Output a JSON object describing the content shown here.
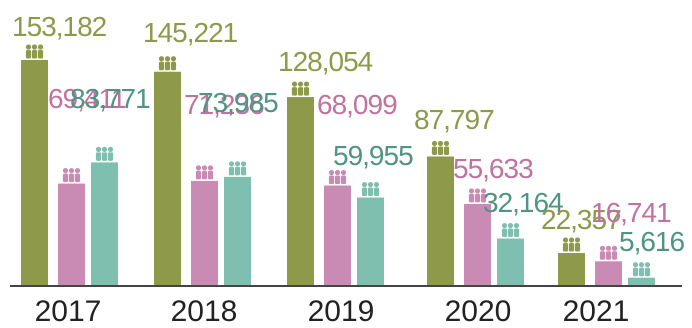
{
  "chart_data": {
    "type": "bar",
    "categories": [
      "2017",
      "2018",
      "2019",
      "2020",
      "2021"
    ],
    "series": [
      {
        "color": "#8e9a4a",
        "values": [
          153182,
          145221,
          128054,
          87797,
          22357
        ],
        "labels": [
          "153,182",
          "145,221",
          "128,054",
          "87,797",
          "22,357"
        ]
      },
      {
        "color": "#c98bb4",
        "values": [
          69411,
          71236,
          68099,
          55633,
          16741
        ],
        "labels": [
          "69,411",
          "71,236",
          "68,099",
          "55,633",
          "16,741"
        ]
      },
      {
        "color": "#7fbfaf",
        "values": [
          83771,
          73985,
          59955,
          32164,
          5616
        ],
        "labels": [
          "83,771",
          "73,985",
          "59,955",
          "32,164",
          "5,616"
        ]
      }
    ],
    "label_colors": [
      "#8e9a4a",
      "#c0739f",
      "#4f9484"
    ],
    "icon": "people-group-icon",
    "grid": false,
    "legend": "none"
  }
}
